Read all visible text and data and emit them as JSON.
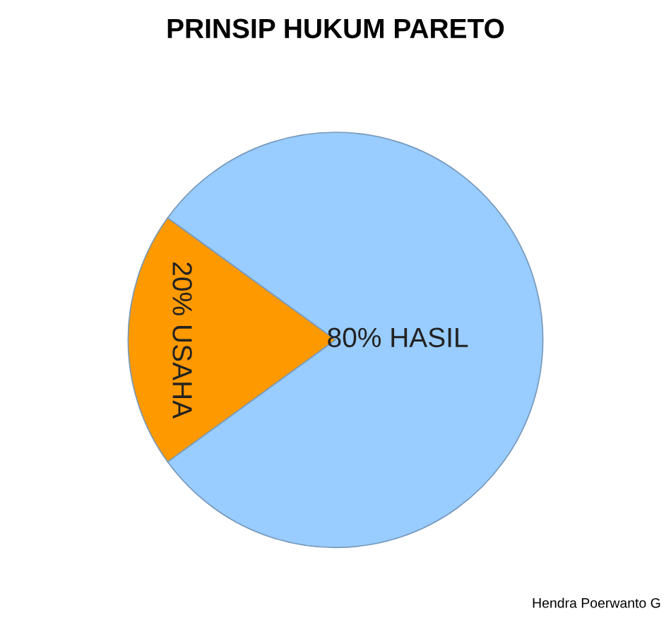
{
  "chart_data": {
    "type": "pie",
    "title": "PRINSIP HUKUM PARETO",
    "categories": [
      "20% USAHA",
      "80% HASIL"
    ],
    "values": [
      20,
      80
    ],
    "colors": [
      "#ff9900",
      "#99ccff"
    ],
    "annotations": [
      "Hendra Poerwanto G"
    ],
    "legend": false
  }
}
